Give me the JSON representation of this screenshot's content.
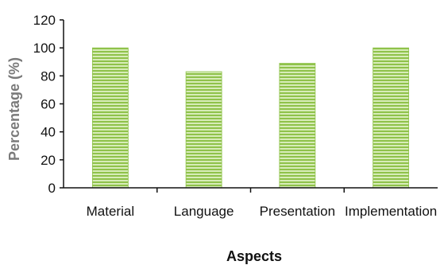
{
  "chart_data": {
    "type": "bar",
    "categories": [
      "Material",
      "Language",
      "Presentation",
      "Implementation"
    ],
    "values": [
      100,
      83,
      89,
      100
    ],
    "title": "",
    "xlabel": "Aspects",
    "ylabel": "Percentage (%)",
    "ylim": [
      0,
      120
    ],
    "yticks": [
      "0",
      "20",
      "40",
      "60",
      "80",
      "100",
      "120"
    ],
    "grid": false,
    "legend": "none",
    "bar_color": "#8fc24a",
    "bar_stripe_color": "#d7ecb8",
    "axis_color": "#111111"
  }
}
